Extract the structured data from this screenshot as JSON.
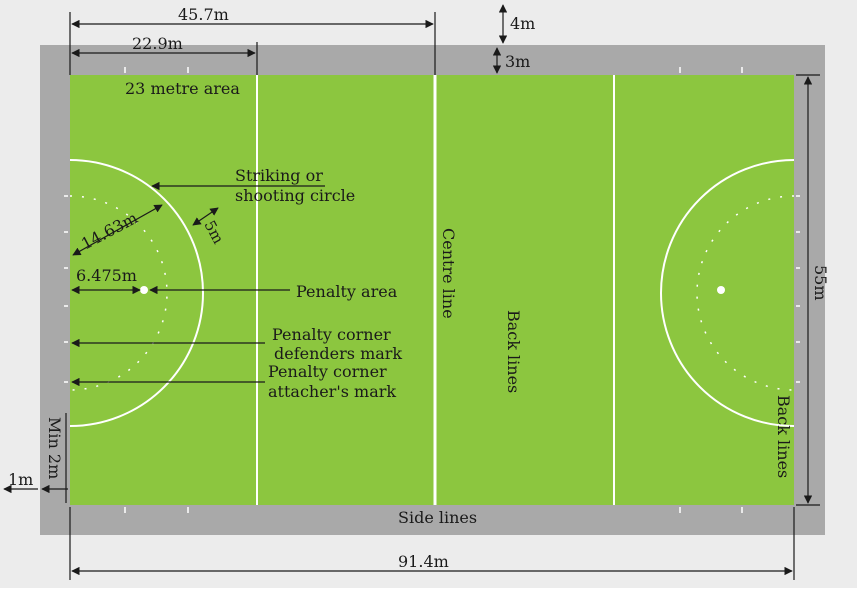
{
  "labels": {
    "dim_45_7": "45.7m",
    "dim_22_9": "22.9m",
    "dim_4": "4m",
    "dim_3": "3m",
    "area_23": "23 metre area",
    "striking_1": "Striking or",
    "striking_2": "shooting circle",
    "radius": "14.63m",
    "five_m": "5m",
    "spot_dist": "6.475m",
    "penalty_area": "Penalty area",
    "defenders_1": "Penalty corner",
    "defenders_2": "defenders mark",
    "attacker_1": "Penalty corner",
    "attacker_2": "attacher's mark",
    "centre_line": "Centre line",
    "back_lines_mid": "Back lines",
    "back_lines_right": "Back lines",
    "width_55": "55m",
    "min_2m": "Min 2m",
    "one_m": "1m",
    "side_lines": "Side lines",
    "length_91": "91.4m"
  },
  "colors": {
    "field": "#8cc63f",
    "border": "#a9a9a9",
    "outer": "#ececec",
    "lines": "#ffffff",
    "text": "#1a1a1a"
  }
}
